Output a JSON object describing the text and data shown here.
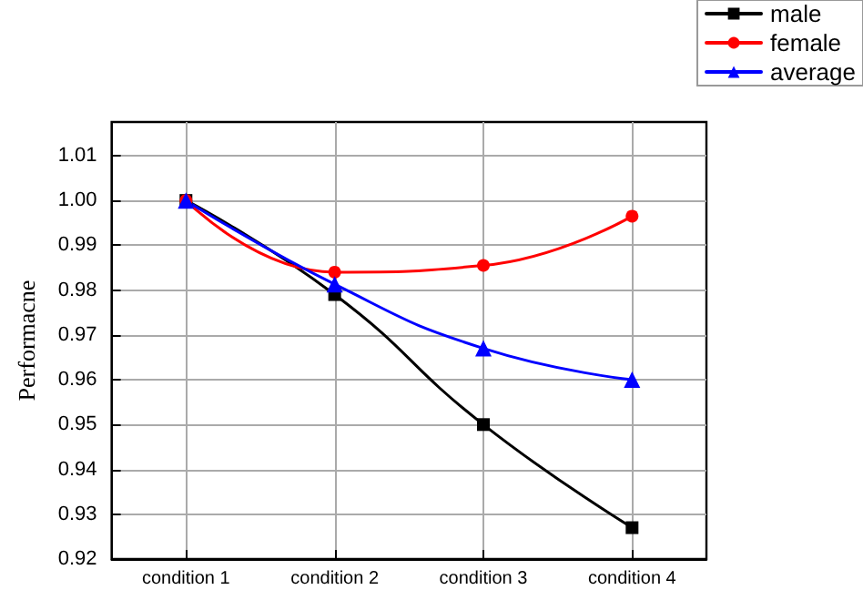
{
  "chart_data": {
    "type": "line",
    "ylabel": "Performacne",
    "categories": [
      "condition 1",
      "condition 2",
      "condition 3",
      "condition 4"
    ],
    "series": [
      {
        "name": "male",
        "color": "#000000",
        "marker": "square",
        "values": [
          1.0,
          0.979,
          0.95,
          0.927
        ]
      },
      {
        "name": "female",
        "color": "#ff0000",
        "marker": "circle",
        "values": [
          1.0,
          0.984,
          0.9855,
          0.9965
        ]
      },
      {
        "name": "average",
        "color": "#0000ff",
        "marker": "triangle",
        "values": [
          1.0,
          0.9813,
          0.967,
          0.96
        ]
      }
    ],
    "ylim": [
      0.92,
      1.0175
    ],
    "yticks": [
      0.92,
      0.93,
      0.94,
      0.95,
      0.96,
      0.97,
      0.98,
      0.99,
      {
        "value": 1.0,
        "label": "1.00"
      },
      1.01
    ],
    "grid": true,
    "legend": "top right",
    "line_style": "solid"
  }
}
